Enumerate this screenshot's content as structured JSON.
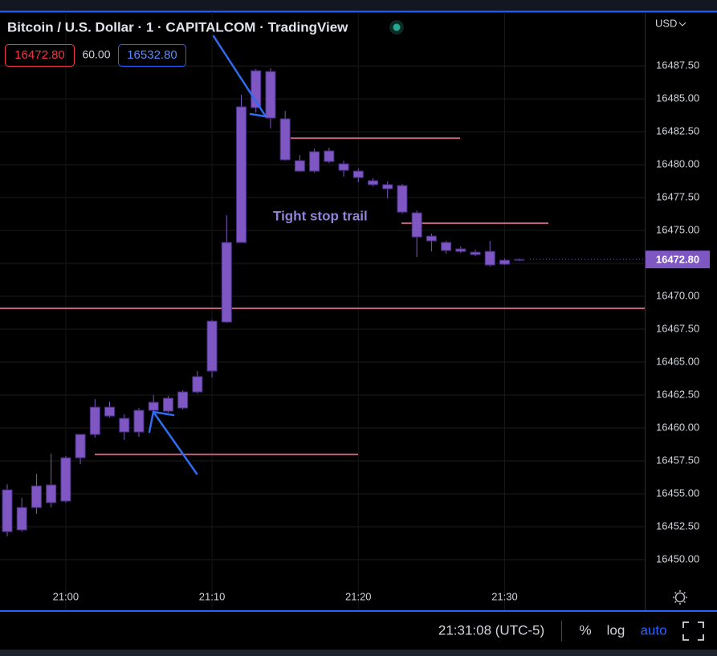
{
  "chart_data": {
    "type": "candlestick",
    "title": "Bitcoin / U.S. Dollar · 1 · CAPITALCOM · TradingView",
    "bid": "16472.80",
    "spread": "60.00",
    "ask": "16532.80",
    "currency": "USD",
    "annotation": "Tight stop trail",
    "last_price": {
      "value": 16472.8,
      "label": "16472.80"
    },
    "clock": "21:31:08 (UTC-5)",
    "scale_buttons": [
      "%",
      "log",
      "auto"
    ],
    "color": "#7e57c2",
    "level_color": "#c2607e",
    "grid": true,
    "categories": [
      null,
      null,
      null,
      null,
      "21:00",
      null,
      null,
      null,
      null,
      null,
      null,
      null,
      null,
      null,
      "21:10",
      null,
      null,
      null,
      null,
      null,
      null,
      null,
      null,
      null,
      "21:20",
      null,
      null,
      null,
      null,
      null,
      null,
      null,
      null,
      null,
      "21:30",
      null
    ],
    "open": [
      16452.13,
      16452.26,
      16453.96,
      16454.33,
      16454.45,
      16457.74,
      16459.51,
      16461.58,
      16460.73,
      16459.7,
      16461.34,
      16461.28,
      16461.52,
      16462.74,
      16464.33,
      16468.05,
      16474.09,
      16484.33,
      16487.07,
      16483.48,
      16480.3,
      16479.51,
      16481.04,
      16480.06,
      16479.51,
      16478.78,
      16478.48,
      16478.41,
      16476.34,
      16474.57,
      16474.09,
      16473.6,
      16473.35,
      16473.41,
      16472.44,
      16472.74
    ],
    "high": [
      16455.73,
      16454.7,
      16456.52,
      16458.05,
      16457.87,
      16459.51,
      16462.2,
      16462.0,
      16461.04,
      16461.52,
      16462.5,
      16462.44,
      16462.87,
      16464.33,
      16468.23,
      16476.16,
      16485.3,
      16487.26,
      16487.32,
      16484.09,
      16480.73,
      16481.22,
      16481.28,
      16480.3,
      16479.7,
      16478.96,
      16478.72,
      16478.54,
      16476.52,
      16474.76,
      16474.21,
      16473.78,
      16473.54,
      16474.21,
      16472.87,
      16472.87
    ],
    "low": [
      16451.77,
      16452.13,
      16453.48,
      16453.96,
      16454.33,
      16457.26,
      16459.27,
      16460.79,
      16459.09,
      16459.33,
      16461.22,
      16461.16,
      16461.4,
      16462.62,
      16463.84,
      16467.99,
      16474.09,
      16483.96,
      16482.74,
      16480.3,
      16479.45,
      16479.39,
      16480.12,
      16479.09,
      16478.66,
      16478.35,
      16477.44,
      16476.28,
      16472.99,
      16473.41,
      16473.23,
      16473.29,
      16473.05,
      16472.26,
      16472.38,
      16472.68
    ],
    "close": [
      16455.3,
      16453.96,
      16455.6,
      16455.67,
      16457.74,
      16459.51,
      16461.58,
      16460.91,
      16459.7,
      16461.34,
      16461.95,
      16462.26,
      16462.74,
      16463.9,
      16468.11,
      16474.09,
      16484.39,
      16487.13,
      16483.54,
      16480.37,
      16479.51,
      16480.98,
      16480.24,
      16479.57,
      16479.02,
      16478.48,
      16478.17,
      16476.4,
      16474.51,
      16474.21,
      16473.48,
      16473.41,
      16473.17,
      16472.38,
      16472.74,
      16472.8
    ],
    "levels": [
      16469.09,
      16482.01,
      16475.55,
      16458.0
    ],
    "ylim": [
      16446.16,
      16491.59
    ],
    "yticks": [
      {
        "value": 16450,
        "label": "16450.00"
      },
      {
        "value": 16452.5,
        "label": "16452.50"
      },
      {
        "value": 16455,
        "label": "16455.00"
      },
      {
        "value": 16457.5,
        "label": "16457.50"
      },
      {
        "value": 16460,
        "label": "16460.00"
      },
      {
        "value": 16462.5,
        "label": "16462.50"
      },
      {
        "value": 16465,
        "label": "16465.00"
      },
      {
        "value": 16467.5,
        "label": "16467.50"
      },
      {
        "value": 16470,
        "label": "16470.00"
      },
      {
        "value": 16472.5,
        "label": "16472.50"
      },
      {
        "value": 16475,
        "label": "16475.00"
      },
      {
        "value": 16477.5,
        "label": "16477.50"
      },
      {
        "value": 16480,
        "label": "16480.00"
      },
      {
        "value": 16482.5,
        "label": "16482.50"
      },
      {
        "value": 16485,
        "label": "16485.00"
      },
      {
        "value": 16487.5,
        "label": "16487.50"
      }
    ]
  }
}
